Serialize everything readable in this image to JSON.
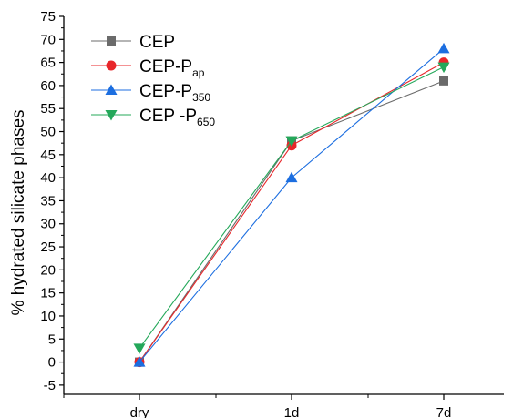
{
  "chart_data": {
    "type": "line",
    "categories": [
      "dry",
      "1d",
      "7d"
    ],
    "ylabel": "% hydrated silicate phases",
    "xlabel": "",
    "ylim": [
      -7,
      75
    ],
    "yticks": [
      -5,
      0,
      5,
      10,
      15,
      20,
      25,
      30,
      35,
      40,
      45,
      50,
      55,
      60,
      65,
      70,
      75
    ],
    "legend_position": "top-left",
    "series": [
      {
        "name": "CEP",
        "name_main": "CEP",
        "name_sub": "",
        "color": "#6b6b6b",
        "marker": "square",
        "values": [
          0,
          48,
          61
        ]
      },
      {
        "name": "CEP-Pap",
        "name_main": "CEP-P",
        "name_sub": "ap",
        "color": "#e8262a",
        "marker": "circle",
        "values": [
          0,
          47,
          65
        ]
      },
      {
        "name": "CEP-P350",
        "name_main": "CEP-P",
        "name_sub": "350",
        "color": "#1c6ee0",
        "marker": "triangle-up",
        "values": [
          0,
          40,
          68
        ]
      },
      {
        "name": "CEP -P650",
        "name_main": "CEP -P",
        "name_sub": "650",
        "color": "#24a85a",
        "marker": "triangle-down",
        "values": [
          3,
          48,
          64
        ]
      }
    ]
  }
}
